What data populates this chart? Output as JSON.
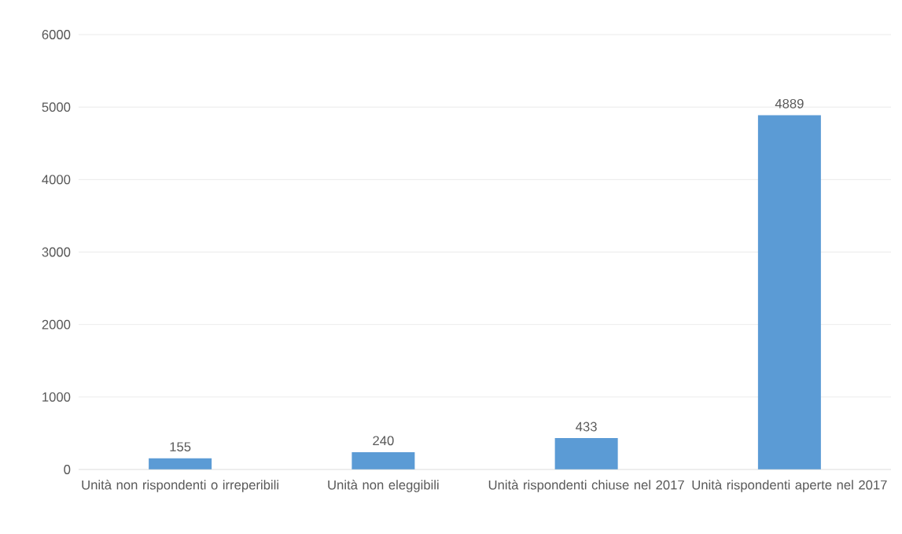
{
  "chart_data": {
    "type": "bar",
    "categories": [
      "Unità non rispondenti o irreperibili",
      "Unità non eleggibili",
      "Unità rispondenti chiuse nel 2017",
      "Unità rispondenti aperte nel 2017"
    ],
    "values": [
      155,
      240,
      433,
      4889
    ],
    "color": "#5b9bd5",
    "ylim": [
      0,
      6000
    ],
    "yticks": [
      0,
      1000,
      2000,
      3000,
      4000,
      5000,
      6000
    ],
    "grid": "y",
    "data_labels": true
  }
}
